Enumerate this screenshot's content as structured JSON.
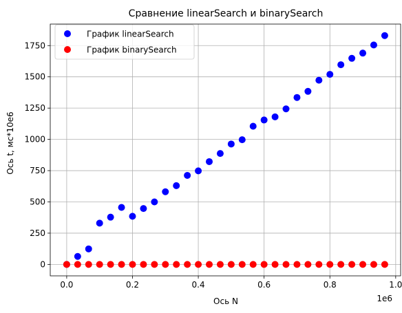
{
  "chart_data": {
    "type": "scatter",
    "title": "Сравнение linearSearch и binarySearch",
    "xlabel": "Ось N",
    "ylabel": "Ось t, мс*10е6",
    "x_offset_label": "1e6",
    "x_tick_labels": [
      "0.0",
      "0.2",
      "0.4",
      "0.6",
      "0.8",
      "1.0"
    ],
    "y_tick_labels": [
      "0",
      "250",
      "500",
      "750",
      "1000",
      "1250",
      "1500",
      "1750"
    ],
    "xlim": [
      -50000,
      1015000
    ],
    "ylim": [
      -91.5,
      1922
    ],
    "grid": true,
    "legend_position": "upper-left",
    "x": [
      0,
      33333,
      66667,
      100000,
      133333,
      166667,
      200000,
      233333,
      266667,
      300000,
      333333,
      366667,
      400000,
      433333,
      466667,
      500000,
      533333,
      566667,
      600000,
      633333,
      666667,
      700000,
      733333,
      766667,
      800000,
      833333,
      866667,
      900000,
      933333,
      966667
    ],
    "series": [
      {
        "name": "График linearSearch",
        "color": "#0000ff",
        "values": [
          0,
          64,
          124,
          330,
          378,
          456,
          385,
          447,
          500,
          581,
          630,
          712,
          748,
          822,
          887,
          963,
          997,
          1105,
          1155,
          1180,
          1244,
          1335,
          1384,
          1473,
          1520,
          1597,
          1648,
          1690,
          1755,
          1830
        ]
      },
      {
        "name": "График binarySearch",
        "color": "#ff0000",
        "values": [
          0,
          0,
          0,
          0,
          0,
          0,
          0,
          0,
          0,
          0,
          0,
          0,
          0,
          0,
          0,
          0,
          0,
          0,
          0,
          0,
          0,
          0,
          0,
          0,
          0,
          0,
          0,
          0,
          0,
          0
        ]
      }
    ]
  }
}
